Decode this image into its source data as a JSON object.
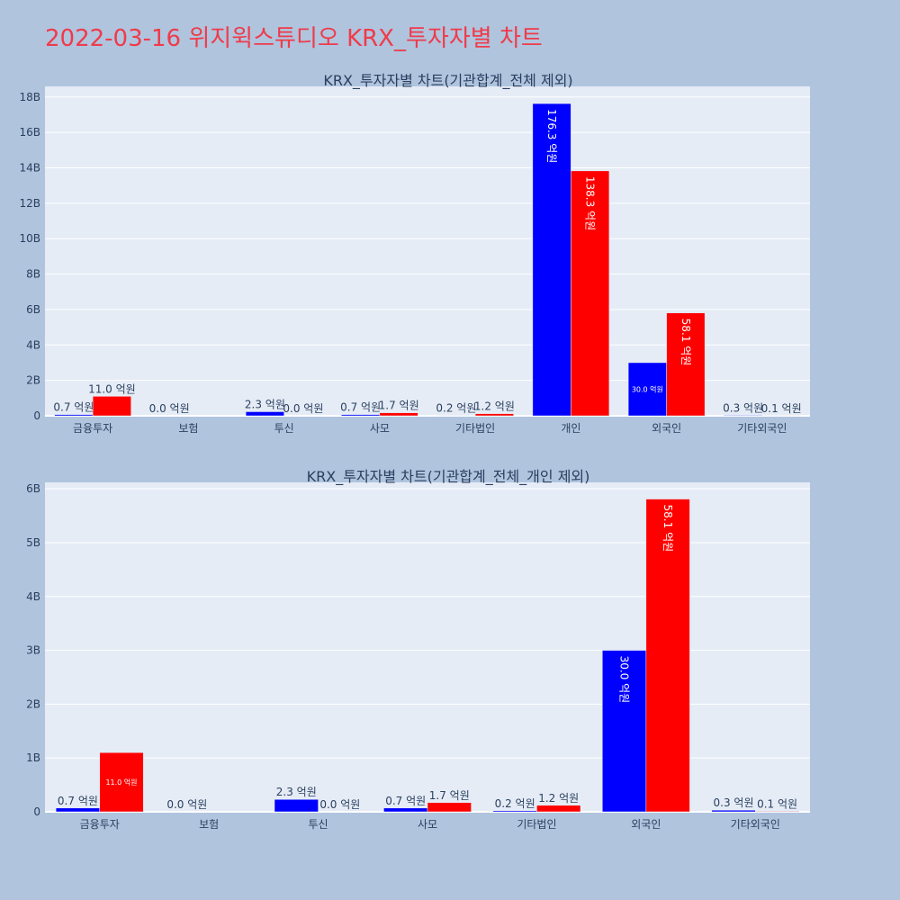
{
  "page": {
    "title": "2022-03-16 위지윅스튜디오 KRX_투자자별 차트"
  },
  "colors": {
    "buy": "#0000ff",
    "sell": "#ff0000",
    "page_background": "#b0c4de",
    "plot_background": "#e5ecf6",
    "title_color": "#ef3b4a"
  },
  "chart_data": [
    {
      "type": "bar",
      "title": "KRX_투자자별 차트(기관합계_전체 제외)",
      "categories": [
        "금융투자",
        "보험",
        "투신",
        "사모",
        "기타법인",
        "개인",
        "외국인",
        "기타외국인"
      ],
      "series": [
        {
          "color": "#0000ff",
          "values": [
            0.07,
            0.0,
            0.23,
            0.07,
            0.02,
            17.63,
            3.0,
            0.03
          ],
          "labels": [
            "0.7 억원",
            "0.0 억원",
            "2.3 억원",
            "0.7 억원",
            "0.2 억원",
            "176.3 억원",
            "30.0 억원",
            "0.3 억원"
          ]
        },
        {
          "color": "#ff0000",
          "values": [
            1.1,
            0.0,
            0.0,
            0.17,
            0.12,
            13.83,
            5.81,
            0.01
          ],
          "labels": [
            "11.0 억원",
            "",
            "0.0 억원",
            "1.7 억원",
            "1.2 억원",
            "138.3 억원",
            "58.1 억원",
            "0.1 억원"
          ]
        }
      ],
      "ylim": [
        0,
        18.6
      ],
      "yticks": [
        0,
        2,
        4,
        6,
        8,
        10,
        12,
        14,
        16,
        18
      ],
      "ytick_labels": [
        "0",
        "2B",
        "4B",
        "6B",
        "8B",
        "10B",
        "12B",
        "14B",
        "16B",
        "18B"
      ],
      "grid": true
    },
    {
      "type": "bar",
      "title": "KRX_투자자별 차트(기관합계_전체_개인 제외)",
      "categories": [
        "금융투자",
        "보험",
        "투신",
        "사모",
        "기타법인",
        "외국인",
        "기타외국인"
      ],
      "series": [
        {
          "color": "#0000ff",
          "values": [
            0.07,
            0.0,
            0.23,
            0.07,
            0.02,
            3.0,
            0.03
          ],
          "labels": [
            "0.7 억원",
            "0.0 억원",
            "2.3 억원",
            "0.7 억원",
            "0.2 억원",
            "30.0 억원",
            "0.3 억원"
          ]
        },
        {
          "color": "#ff0000",
          "values": [
            1.1,
            0.0,
            0.0,
            0.17,
            0.12,
            5.81,
            0.01
          ],
          "labels": [
            "11.0 억원",
            "",
            "0.0 억원",
            "1.7 억원",
            "1.2 억원",
            "58.1 억원",
            "0.1 억원"
          ]
        }
      ],
      "ylim": [
        0,
        6.12
      ],
      "yticks": [
        0,
        1,
        2,
        3,
        4,
        5,
        6
      ],
      "ytick_labels": [
        "0",
        "1B",
        "2B",
        "3B",
        "4B",
        "5B",
        "6B"
      ],
      "grid": true
    }
  ]
}
